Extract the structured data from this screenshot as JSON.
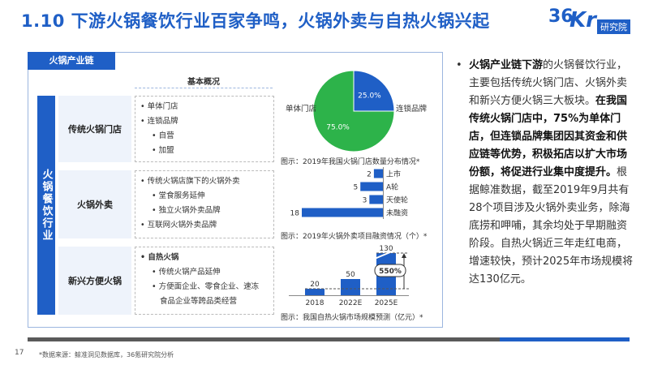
{
  "title": "1.10 下游火锅餐饮行业百家争鸣，火锅外卖与自热火锅兴起",
  "logo": {
    "num": "36",
    "kr": "Kr",
    "inst": "研究院"
  },
  "panel": {
    "tab": "火锅产业链",
    "vertical_label": "火锅餐饮行业",
    "overview_head": "基本概况",
    "categories": [
      "传统火锅门店",
      "火锅外卖",
      "新兴方便火锅"
    ],
    "desc1": {
      "a": "单体门店",
      "b": "连锁品牌",
      "c": "自营",
      "d": "加盟"
    },
    "desc2": {
      "a": "传统火锅店旗下的火锅外卖",
      "b": "堂食服务延伸",
      "c": "独立火锅外卖品牌",
      "d": "互联网火锅外卖品牌"
    },
    "desc3": {
      "a": "自热火锅",
      "b": "传统火锅产品延伸",
      "c": "方便面企业、零食企业、速冻",
      "d": "食品企业等跨品类经营"
    }
  },
  "charts": {
    "pie_caption": "图示：2019年我国火锅门店数量分布情况*",
    "hbar_caption": "图示：2019年火锅外卖项目融资情况（个）*",
    "vbar_caption": "图示：我国自热火锅市场规模预测（亿元）*",
    "growth_label": "550%"
  },
  "chart_data": [
    {
      "type": "pie",
      "categories": [
        "单体门店",
        "连锁品牌"
      ],
      "values": [
        75.0,
        25.0
      ],
      "value_labels": [
        "75.0%",
        "25.0%"
      ],
      "colors": [
        "#2db34a",
        "#1f5fc6"
      ],
      "title": "图示：2019年我国火锅门店数量分布情况*"
    },
    {
      "type": "bar",
      "orientation": "horizontal",
      "categories": [
        "上市",
        "A轮",
        "天使轮",
        "未融资"
      ],
      "values": [
        2,
        5,
        3,
        18
      ],
      "color": "#1f5fc6",
      "title": "图示：2019年火锅外卖项目融资情况（个）*"
    },
    {
      "type": "bar",
      "categories": [
        "2018",
        "2022E",
        "2025E"
      ],
      "values": [
        20,
        50,
        130
      ],
      "color": "#1f5fc6",
      "title": "图示：我国自热火锅市场规模预测（亿元）*"
    }
  ],
  "right": {
    "bullet": "•",
    "p1": "火锅产业链下游",
    "p2": "的火锅餐饮行业，主要包括传统火锅门店、火锅外卖和新兴方便火锅三大板块。",
    "p3": "在我国传统火锅门店中，75%为单体门店，但连锁品牌集团因其资金和供应链等优势，积极拓店以扩大市场份额，将促进行业集中度提升。",
    "p4": "根据鲸准数据，截至2019年9月共有28个项目涉及火锅外卖业务，除海底捞和呷哺，其余均处于早期融资阶段。自热火锅近三年走红电商，增速较快，预计2025年市场规模将达130亿元。"
  },
  "footer": {
    "page": "17",
    "source": "*数据来源：鲸准洞见数据库，36氪研究院分析"
  }
}
